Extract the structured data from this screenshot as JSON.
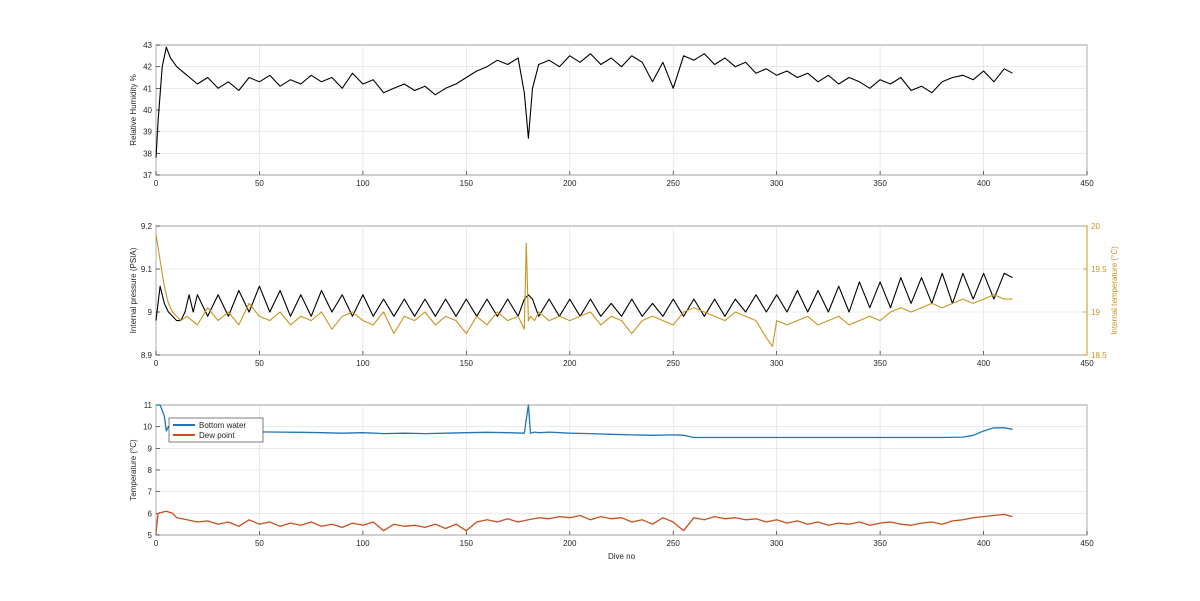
{
  "colors": {
    "black_series": "#000000",
    "pressure": "#000000",
    "internal_temperature": "#C8941E",
    "bottom_water": "#1F77B4",
    "dew_point": "#C8501E",
    "grid": "#DCDCDC"
  },
  "chart_data": [
    {
      "type": "line",
      "title": "",
      "xlabel": "",
      "ylabel": "Relative Humidity %",
      "xlim": [
        0,
        450
      ],
      "ylim": [
        37,
        43
      ],
      "xticks": [
        0,
        50,
        100,
        150,
        200,
        250,
        300,
        350,
        400,
        450
      ],
      "yticks": [
        37,
        38,
        39,
        40,
        41,
        42,
        43
      ],
      "grid": true,
      "series": [
        {
          "name": "",
          "color": "#000000",
          "x": [
            0,
            1,
            3,
            5,
            7,
            10,
            15,
            20,
            25,
            30,
            35,
            40,
            45,
            50,
            55,
            60,
            65,
            70,
            75,
            80,
            85,
            90,
            95,
            100,
            105,
            110,
            115,
            120,
            125,
            130,
            135,
            140,
            145,
            150,
            155,
            160,
            165,
            170,
            175,
            178,
            180,
            182,
            185,
            190,
            195,
            200,
            205,
            210,
            215,
            220,
            225,
            230,
            235,
            240,
            245,
            250,
            255,
            260,
            265,
            270,
            275,
            280,
            285,
            290,
            295,
            300,
            305,
            310,
            315,
            320,
            325,
            330,
            335,
            340,
            345,
            350,
            355,
            360,
            365,
            370,
            375,
            380,
            385,
            390,
            395,
            400,
            405,
            410,
            414
          ],
          "y": [
            37.8,
            39.5,
            42.0,
            42.9,
            42.4,
            42.0,
            41.6,
            41.2,
            41.5,
            41.0,
            41.3,
            40.9,
            41.5,
            41.3,
            41.6,
            41.1,
            41.4,
            41.2,
            41.6,
            41.3,
            41.5,
            41.0,
            41.7,
            41.2,
            41.4,
            40.8,
            41.0,
            41.2,
            40.9,
            41.1,
            40.7,
            41.0,
            41.2,
            41.5,
            41.8,
            42.0,
            42.3,
            42.1,
            42.4,
            40.8,
            38.7,
            41.0,
            42.1,
            42.3,
            42.0,
            42.5,
            42.2,
            42.6,
            42.1,
            42.4,
            42.0,
            42.5,
            42.2,
            41.3,
            42.2,
            41.0,
            42.5,
            42.3,
            42.6,
            42.1,
            42.4,
            42.0,
            42.2,
            41.7,
            41.9,
            41.6,
            41.8,
            41.5,
            41.7,
            41.3,
            41.6,
            41.2,
            41.5,
            41.3,
            41.0,
            41.4,
            41.2,
            41.5,
            40.9,
            41.1,
            40.8,
            41.3,
            41.5,
            41.6,
            41.4,
            41.8,
            41.3,
            41.9,
            41.7
          ]
        }
      ]
    },
    {
      "type": "line",
      "title": "",
      "xlabel": "",
      "ylabel": "Internal pressure (PSIA)",
      "ylabel_right": "Internal temperature (°C)",
      "xlim": [
        0,
        450
      ],
      "ylim": [
        8.9,
        9.2
      ],
      "ylim_right": [
        18.5,
        20
      ],
      "xticks": [
        0,
        50,
        100,
        150,
        200,
        250,
        300,
        350,
        400,
        450
      ],
      "yticks": [
        8.9,
        9,
        9.1,
        9.2
      ],
      "yticks_right": [
        18.5,
        19,
        19.5,
        20
      ],
      "grid": true,
      "series": [
        {
          "name": "",
          "axis": "left",
          "color": "#000000",
          "x": [
            0,
            2,
            4,
            6,
            8,
            10,
            12,
            14,
            16,
            18,
            20,
            25,
            30,
            35,
            40,
            45,
            50,
            55,
            60,
            65,
            70,
            75,
            80,
            85,
            90,
            95,
            100,
            105,
            110,
            115,
            120,
            125,
            130,
            135,
            140,
            145,
            150,
            155,
            160,
            165,
            170,
            175,
            178,
            180,
            182,
            185,
            190,
            195,
            200,
            205,
            210,
            215,
            220,
            225,
            230,
            235,
            240,
            245,
            250,
            255,
            260,
            265,
            270,
            275,
            280,
            285,
            290,
            295,
            300,
            305,
            310,
            315,
            320,
            325,
            330,
            335,
            340,
            345,
            350,
            355,
            360,
            365,
            370,
            375,
            380,
            385,
            390,
            395,
            400,
            405,
            410,
            414
          ],
          "y": [
            8.98,
            9.06,
            9.02,
            9.0,
            8.99,
            8.98,
            8.98,
            9.0,
            9.04,
            9.0,
            9.04,
            8.99,
            9.04,
            8.99,
            9.05,
            9.0,
            9.06,
            9.0,
            9.05,
            8.99,
            9.04,
            8.99,
            9.05,
            9.0,
            9.04,
            8.99,
            9.04,
            8.99,
            9.03,
            8.99,
            9.03,
            8.99,
            9.03,
            8.99,
            9.03,
            8.99,
            9.03,
            8.99,
            9.03,
            8.99,
            9.03,
            8.99,
            9.03,
            9.04,
            9.03,
            8.99,
            9.03,
            8.99,
            9.03,
            8.99,
            9.03,
            8.99,
            9.02,
            8.99,
            9.03,
            8.99,
            9.02,
            8.99,
            9.03,
            8.99,
            9.03,
            8.99,
            9.03,
            8.99,
            9.03,
            9.0,
            9.04,
            9.0,
            9.04,
            9.0,
            9.05,
            9.0,
            9.05,
            9.0,
            9.06,
            9.0,
            9.07,
            9.01,
            9.07,
            9.01,
            9.08,
            9.02,
            9.08,
            9.02,
            9.09,
            9.02,
            9.09,
            9.03,
            9.09,
            9.03,
            9.09,
            9.08
          ]
        },
        {
          "name": "",
          "axis": "right",
          "color": "#C8941E",
          "x": [
            0,
            2,
            4,
            6,
            8,
            10,
            12,
            15,
            20,
            25,
            30,
            35,
            40,
            45,
            50,
            55,
            60,
            65,
            70,
            75,
            80,
            85,
            90,
            95,
            100,
            105,
            110,
            115,
            120,
            125,
            130,
            135,
            140,
            145,
            150,
            155,
            160,
            165,
            170,
            175,
            178,
            179,
            180,
            181,
            183,
            185,
            190,
            195,
            200,
            205,
            210,
            215,
            220,
            225,
            230,
            235,
            240,
            245,
            250,
            255,
            260,
            265,
            270,
            275,
            280,
            285,
            290,
            295,
            298,
            300,
            305,
            310,
            315,
            320,
            325,
            330,
            335,
            340,
            345,
            350,
            355,
            360,
            365,
            370,
            375,
            380,
            385,
            390,
            395,
            400,
            405,
            410,
            414
          ],
          "y": [
            19.9,
            19.6,
            19.3,
            19.1,
            19.0,
            18.95,
            18.9,
            18.95,
            18.85,
            19.05,
            18.9,
            19.0,
            18.85,
            19.1,
            18.95,
            18.9,
            19.0,
            18.85,
            18.95,
            18.9,
            19.0,
            18.8,
            18.95,
            19.0,
            18.9,
            18.85,
            19.0,
            18.75,
            18.95,
            18.9,
            19.0,
            18.85,
            18.95,
            18.9,
            18.75,
            18.95,
            18.85,
            19.0,
            18.9,
            18.95,
            18.8,
            19.8,
            18.9,
            18.95,
            18.9,
            19.0,
            18.9,
            18.95,
            18.9,
            18.95,
            19.0,
            18.85,
            18.95,
            18.9,
            18.75,
            18.9,
            18.95,
            18.9,
            18.85,
            19.0,
            19.05,
            19.0,
            18.95,
            18.9,
            19.0,
            18.95,
            18.9,
            18.7,
            18.6,
            18.9,
            18.85,
            18.9,
            18.95,
            18.85,
            18.9,
            18.95,
            18.85,
            18.9,
            18.95,
            18.9,
            19.0,
            19.05,
            19.0,
            19.05,
            19.1,
            19.05,
            19.1,
            19.15,
            19.1,
            19.15,
            19.2,
            19.15,
            19.15
          ]
        }
      ]
    },
    {
      "type": "line",
      "title": "",
      "xlabel": "Dive no",
      "ylabel": "Temperature (°C)",
      "xlim": [
        0,
        450
      ],
      "ylim": [
        5,
        11
      ],
      "xticks": [
        0,
        50,
        100,
        150,
        200,
        250,
        300,
        350,
        400,
        450
      ],
      "yticks": [
        5,
        6,
        7,
        8,
        9,
        10,
        11
      ],
      "grid": true,
      "legend": "top-left",
      "series": [
        {
          "name": "Bottom water",
          "color": "#1F77B4",
          "x": [
            0,
            2,
            4,
            5,
            6,
            8,
            10,
            15,
            20,
            30,
            40,
            50,
            60,
            70,
            80,
            90,
            100,
            110,
            120,
            130,
            140,
            150,
            160,
            170,
            178,
            180,
            181,
            183,
            185,
            190,
            200,
            210,
            220,
            230,
            240,
            250,
            255,
            260,
            270,
            280,
            290,
            300,
            320,
            340,
            360,
            380,
            390,
            395,
            400,
            405,
            410,
            414
          ],
          "y": [
            11.0,
            11.0,
            10.5,
            9.8,
            10.0,
            9.9,
            9.85,
            9.85,
            9.82,
            9.8,
            9.78,
            9.76,
            9.75,
            9.74,
            9.72,
            9.7,
            9.72,
            9.68,
            9.7,
            9.68,
            9.7,
            9.72,
            9.74,
            9.72,
            9.7,
            11.0,
            9.7,
            9.75,
            9.72,
            9.75,
            9.7,
            9.68,
            9.65,
            9.62,
            9.6,
            9.62,
            9.6,
            9.5,
            9.5,
            9.5,
            9.5,
            9.5,
            9.5,
            9.5,
            9.5,
            9.5,
            9.52,
            9.6,
            9.8,
            9.95,
            9.95,
            9.88
          ]
        },
        {
          "name": "Dew point",
          "color": "#C8501E",
          "x": [
            0,
            1,
            3,
            5,
            8,
            10,
            15,
            20,
            25,
            30,
            35,
            40,
            45,
            50,
            55,
            60,
            65,
            70,
            75,
            80,
            85,
            90,
            95,
            100,
            105,
            110,
            115,
            120,
            125,
            130,
            135,
            140,
            145,
            150,
            155,
            160,
            165,
            170,
            175,
            180,
            185,
            190,
            195,
            200,
            205,
            210,
            215,
            220,
            225,
            230,
            235,
            240,
            245,
            250,
            255,
            260,
            265,
            270,
            275,
            280,
            285,
            290,
            295,
            300,
            305,
            310,
            315,
            320,
            325,
            330,
            335,
            340,
            345,
            350,
            355,
            360,
            365,
            370,
            375,
            380,
            385,
            390,
            395,
            400,
            405,
            410,
            414
          ],
          "y": [
            5.1,
            6.0,
            6.05,
            6.1,
            6.0,
            5.8,
            5.7,
            5.6,
            5.65,
            5.5,
            5.6,
            5.4,
            5.7,
            5.5,
            5.6,
            5.4,
            5.55,
            5.45,
            5.6,
            5.4,
            5.5,
            5.35,
            5.55,
            5.45,
            5.6,
            5.2,
            5.5,
            5.4,
            5.45,
            5.35,
            5.5,
            5.3,
            5.5,
            5.2,
            5.6,
            5.7,
            5.6,
            5.75,
            5.6,
            5.7,
            5.8,
            5.75,
            5.85,
            5.8,
            5.9,
            5.7,
            5.85,
            5.75,
            5.8,
            5.6,
            5.7,
            5.5,
            5.8,
            5.6,
            5.2,
            5.8,
            5.7,
            5.85,
            5.75,
            5.8,
            5.7,
            5.75,
            5.6,
            5.7,
            5.55,
            5.65,
            5.5,
            5.6,
            5.45,
            5.55,
            5.5,
            5.6,
            5.45,
            5.55,
            5.6,
            5.5,
            5.45,
            5.55,
            5.6,
            5.5,
            5.65,
            5.7,
            5.8,
            5.85,
            5.9,
            5.95,
            5.85
          ]
        }
      ]
    }
  ]
}
